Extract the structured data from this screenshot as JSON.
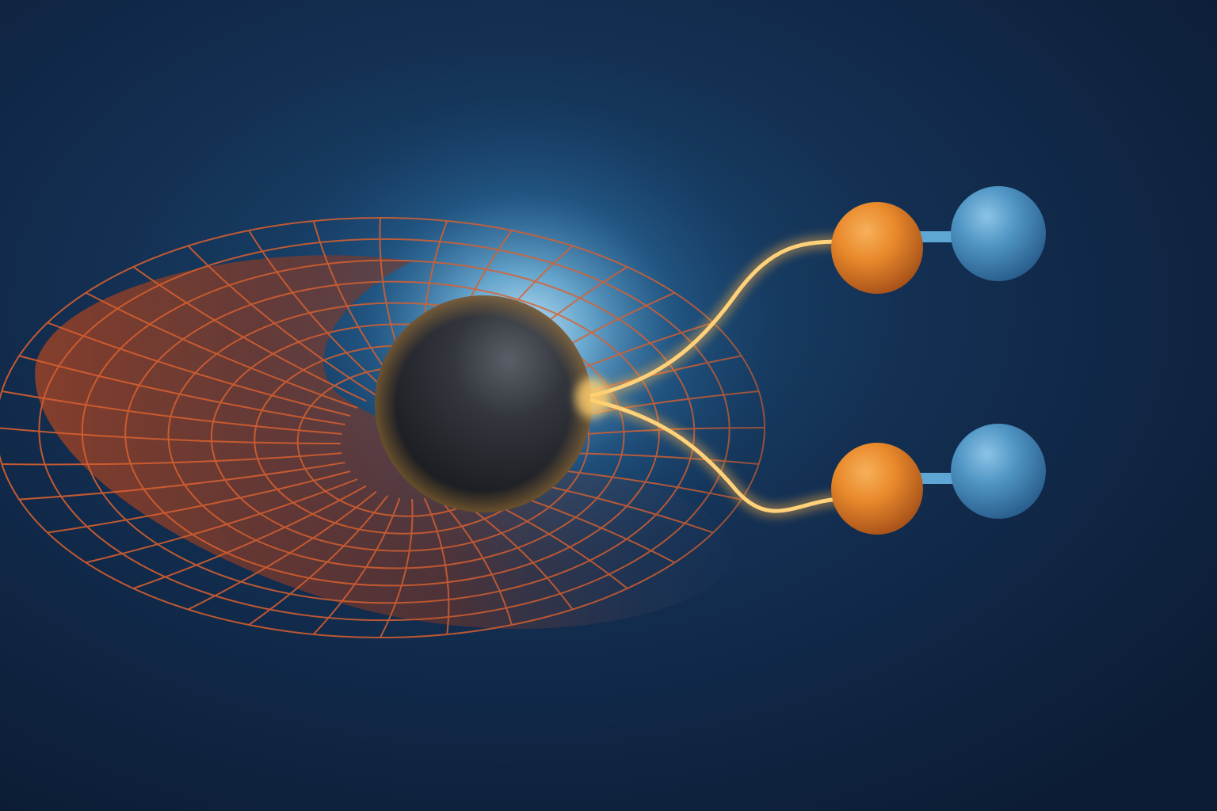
{
  "scene": {
    "background_color": "#0e2240",
    "background_glow_color": "#7fc4ea",
    "grid_color": "#d9602f",
    "grid_fill_color": "#8a3a24",
    "grid_fade_color": "#3f6f99",
    "central_sphere_color": "#2a2d33",
    "filament_color": "#ffc15a",
    "filament_core_color": "#fff1c9",
    "particle_orange_color": "#e98a2c",
    "particle_blue_color": "#4f95c4",
    "bond_color": "#5ea7d4",
    "particle_pairs": 2
  }
}
